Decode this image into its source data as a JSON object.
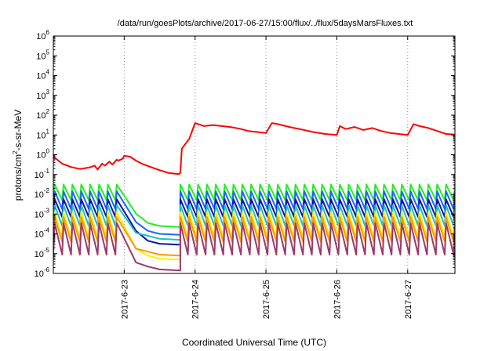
{
  "chart_data": {
    "type": "line",
    "title": "/data/run/goesPlots/archive/2017-06-27/15:00/flux/../flux/5daysMarsFluxes.txt",
    "xlabel": "Coordinated Universal Time (UTC)",
    "ylabel": "protons/cm2-s-sr-MeV",
    "yscale": "log",
    "ylim_exponent": [
      -6,
      6
    ],
    "y_ticks": [
      {
        "base": "10",
        "exp": "-6"
      },
      {
        "base": "10",
        "exp": "-5"
      },
      {
        "base": "10",
        "exp": "-4"
      },
      {
        "base": "10",
        "exp": "-3"
      },
      {
        "base": "10",
        "exp": "-2"
      },
      {
        "base": "10",
        "exp": "-1"
      },
      {
        "base": "10",
        "exp": "0"
      },
      {
        "base": "10",
        "exp": "1"
      },
      {
        "base": "10",
        "exp": "2"
      },
      {
        "base": "10",
        "exp": "3"
      },
      {
        "base": "10",
        "exp": "4"
      },
      {
        "base": "10",
        "exp": "5"
      },
      {
        "base": "10",
        "exp": "6"
      }
    ],
    "xlim": [
      "2017-06-22 00:00",
      "2017-06-27 16:00"
    ],
    "x_ticks": [
      "2017-6-23",
      "2017-6-24",
      "2017-6-25",
      "2017-6-26",
      "2017-6-27"
    ],
    "grid": "dotted vertical lines at x ticks",
    "legend": "none",
    "description": "Each series is a sawtooth of log10 flux values; the drop around 2017-06-23 corresponds to a data gap followed by a recovery at about 2017-06-23 19:00.",
    "series": [
      {
        "color": "#ff0000",
        "points": [
          [
            "2017-06-22 00:00",
            -0.1
          ],
          [
            "2017-06-22 03:00",
            -0.45
          ],
          [
            "2017-06-22 06:00",
            -0.62
          ],
          [
            "2017-06-22 09:00",
            -0.72
          ],
          [
            "2017-06-22 12:00",
            -0.65
          ],
          [
            "2017-06-22 14:00",
            -0.55
          ],
          [
            "2017-06-22 15:00",
            -0.75
          ],
          [
            "2017-06-22 16:30",
            -0.45
          ],
          [
            "2017-06-22 17:30",
            -0.55
          ],
          [
            "2017-06-22 19:00",
            -0.35
          ],
          [
            "2017-06-22 20:00",
            -0.5
          ],
          [
            "2017-06-22 21:30",
            -0.25
          ],
          [
            "2017-06-22 22:00",
            -0.3
          ],
          [
            "2017-06-22 23:30",
            -0.2
          ],
          [
            "2017-06-23 00:00",
            -0.05
          ],
          [
            "2017-06-23 02:00",
            -0.1
          ],
          [
            "2017-06-23 04:00",
            -0.3
          ],
          [
            "2017-06-23 06:00",
            -0.45
          ],
          [
            "2017-06-23 09:00",
            -0.62
          ],
          [
            "2017-06-23 12:00",
            -0.78
          ],
          [
            "2017-06-23 15:00",
            -0.92
          ],
          [
            "2017-06-23 18:30",
            -0.98
          ],
          [
            "2017-06-23 19:00",
            -0.92
          ],
          [
            "2017-06-23 19:30",
            0.3
          ],
          [
            "2017-06-23 20:00",
            0.4
          ],
          [
            "2017-06-23 21:30",
            0.7
          ],
          [
            "2017-06-23 22:00",
            0.8
          ],
          [
            "2017-06-24 00:00",
            1.6
          ],
          [
            "2017-06-24 03:00",
            1.45
          ],
          [
            "2017-06-24 06:00",
            1.5
          ],
          [
            "2017-06-24 09:00",
            1.45
          ],
          [
            "2017-06-24 12:00",
            1.4
          ],
          [
            "2017-06-24 15:00",
            1.32
          ],
          [
            "2017-06-24 18:00",
            1.2
          ],
          [
            "2017-06-24 21:00",
            1.15
          ],
          [
            "2017-06-25 00:00",
            1.1
          ],
          [
            "2017-06-25 02:00",
            1.6
          ],
          [
            "2017-06-25 04:00",
            1.55
          ],
          [
            "2017-06-25 08:00",
            1.4
          ],
          [
            "2017-06-25 12:00",
            1.28
          ],
          [
            "2017-06-25 16:00",
            1.15
          ],
          [
            "2017-06-25 20:00",
            1.05
          ],
          [
            "2017-06-26 00:00",
            1.0
          ],
          [
            "2017-06-26 01:00",
            1.45
          ],
          [
            "2017-06-26 03:00",
            1.3
          ],
          [
            "2017-06-26 06:00",
            1.4
          ],
          [
            "2017-06-26 09:00",
            1.25
          ],
          [
            "2017-06-26 12:00",
            1.35
          ],
          [
            "2017-06-26 15:00",
            1.2
          ],
          [
            "2017-06-26 18:00",
            1.1
          ],
          [
            "2017-06-26 21:00",
            1.05
          ],
          [
            "2017-06-27 00:00",
            1.0
          ],
          [
            "2017-06-27 02:00",
            1.55
          ],
          [
            "2017-06-27 04:00",
            1.45
          ],
          [
            "2017-06-27 07:00",
            1.35
          ],
          [
            "2017-06-27 10:00",
            1.2
          ],
          [
            "2017-06-27 13:00",
            1.05
          ],
          [
            "2017-06-27 16:00",
            1.02
          ]
        ]
      },
      {
        "color": "#22ee22",
        "high": -1.5,
        "low": -2.3,
        "gap_low": -3.65
      },
      {
        "color": "#1a66ff",
        "high": -1.85,
        "low": -2.75,
        "gap_low": -4.05
      },
      {
        "color": "#1010b0",
        "high": -2.25,
        "low": -3.15,
        "gap_low": -4.55
      },
      {
        "color": "#20c0c0",
        "high": -2.55,
        "low": -3.6,
        "gap_low": -4.3
      },
      {
        "color": "#ffee00",
        "high": -2.9,
        "low": -4.2,
        "gap_low": -5.3
      },
      {
        "color": "#ff9900",
        "high": -3.15,
        "low": -4.4,
        "gap_low": -5.1
      },
      {
        "color": "#9b3a6b",
        "high": -3.45,
        "low": -5.05,
        "gap_low": -5.85
      }
    ]
  }
}
